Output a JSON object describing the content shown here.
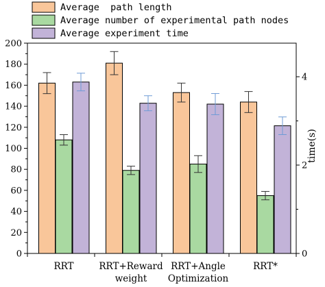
{
  "chart_data": {
    "type": "bar",
    "categories": [
      [
        "RRT"
      ],
      [
        "RRT+Reward",
        "weight"
      ],
      [
        "RRT+Angle",
        "Optimization"
      ],
      [
        "RRT*"
      ]
    ],
    "series": [
      {
        "name": "Average  path length",
        "axis": "left",
        "color": "#F9C69A",
        "values": [
          162,
          181,
          153,
          144
        ],
        "error": [
          10,
          11,
          9,
          10
        ]
      },
      {
        "name": "Average number of experimental path nodes",
        "axis": "left",
        "color": "#A9D9A1",
        "values": [
          108,
          79,
          85,
          55
        ],
        "error": [
          5,
          4,
          8,
          4
        ]
      },
      {
        "name": "Average experiment time",
        "axis": "right",
        "color": "#C2B3D8",
        "values": [
          3.88,
          3.4,
          3.38,
          2.89
        ],
        "error": [
          0.2,
          0.17,
          0.24,
          0.2
        ]
      }
    ],
    "left_axis": {
      "label": "",
      "ylim": [
        0,
        200
      ],
      "ticks": [
        0,
        20,
        40,
        60,
        80,
        100,
        120,
        140,
        160,
        180,
        200
      ]
    },
    "right_axis": {
      "label": "time(s)",
      "ylim": [
        0,
        4.76
      ],
      "ticks": [
        0,
        2,
        4
      ]
    },
    "legend_placement": "top-left",
    "grid": false
  }
}
